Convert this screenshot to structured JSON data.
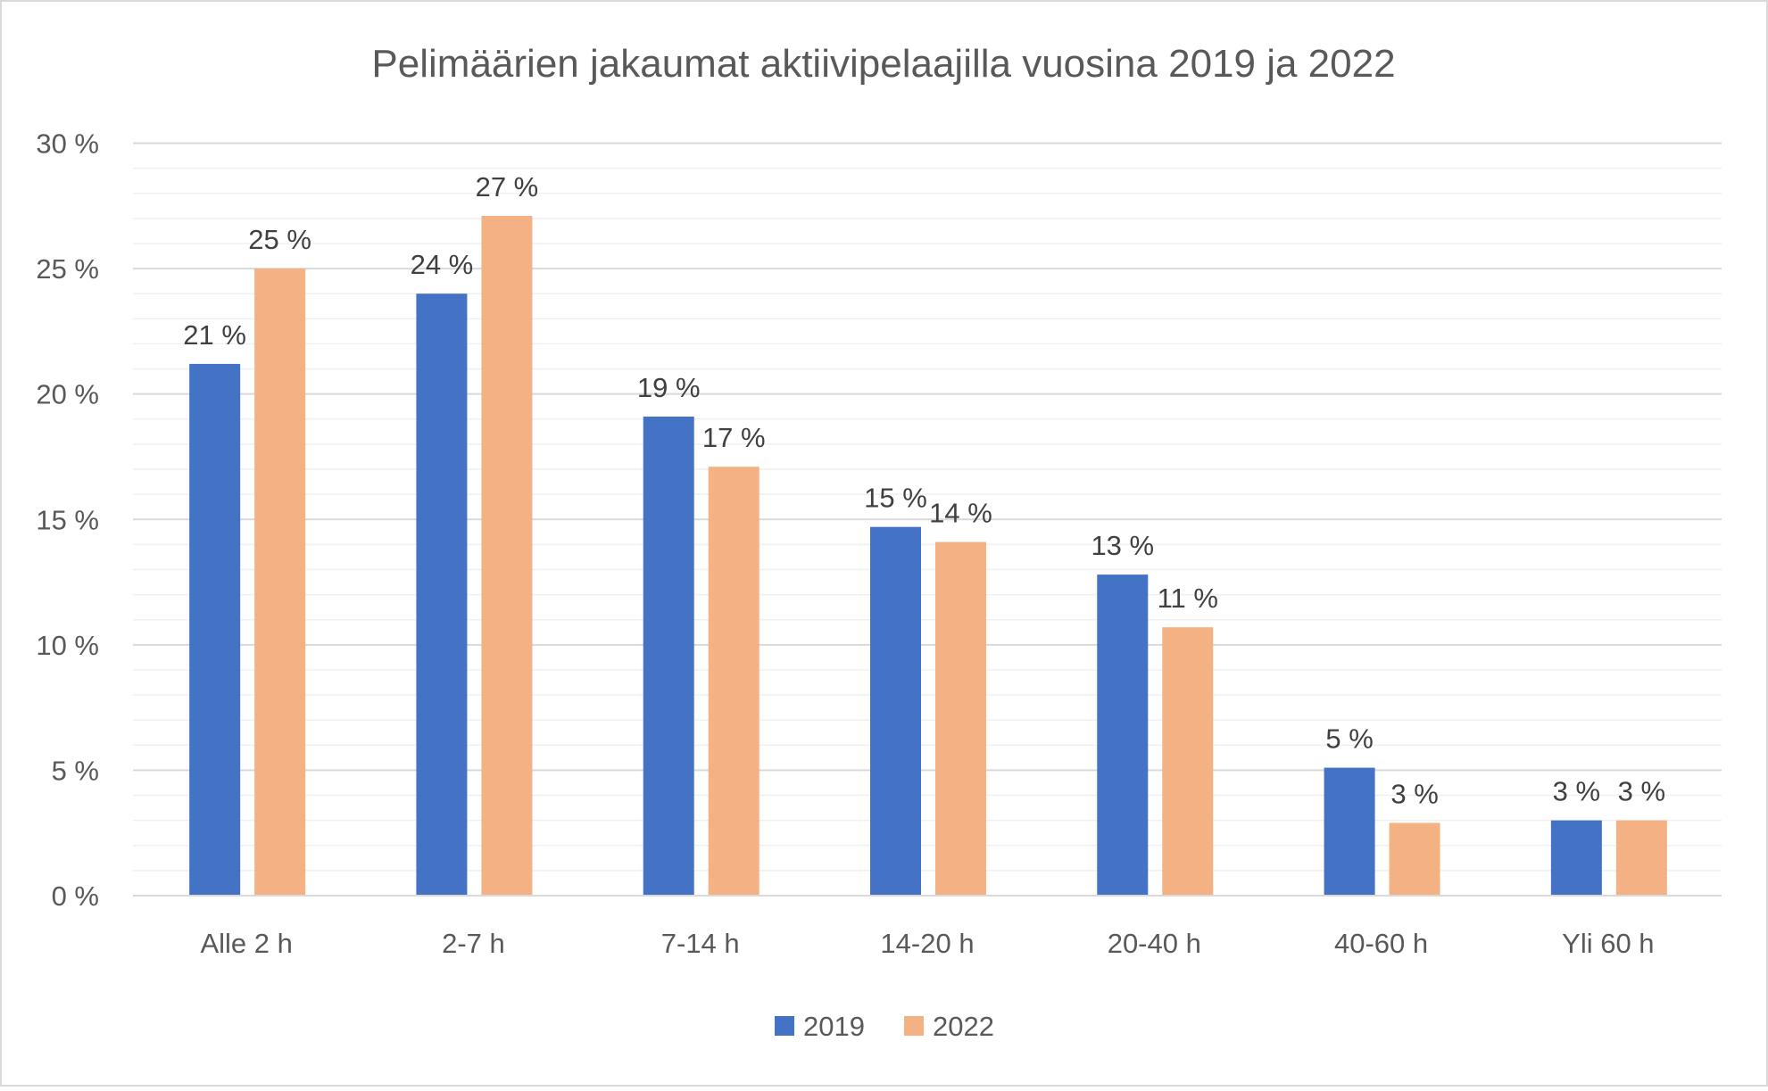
{
  "chart_data": {
    "type": "bar",
    "title": "Pelimäärien jakaumat aktiivipelaajilla vuosina 2019 ja 2022",
    "xlabel": "",
    "ylabel": "",
    "ylim": [
      0,
      30
    ],
    "yticks": [
      "0 %",
      "5 %",
      "10 %",
      "15 %",
      "20 %",
      "25 %",
      "30 %"
    ],
    "grid": true,
    "legend_position": "bottom",
    "categories": [
      "Alle 2 h",
      "2-7 h",
      "7-14 h",
      "14-20 h",
      "20-40 h",
      "40-60 h",
      "Yli 60 h"
    ],
    "series": [
      {
        "name": "2019",
        "color": "#4472C4",
        "values": [
          21.2,
          24.0,
          19.1,
          14.7,
          12.8,
          5.1,
          3.0
        ],
        "labels": [
          "21 %",
          "24 %",
          "19 %",
          "15 %",
          "13 %",
          "5 %",
          "3 %"
        ]
      },
      {
        "name": "2022",
        "color": "#F4B183",
        "values": [
          25.0,
          27.1,
          17.1,
          14.1,
          10.7,
          2.9,
          3.0
        ],
        "labels": [
          "25 %",
          "27 %",
          "17 %",
          "14 %",
          "11 %",
          "3 %",
          "3 %"
        ]
      }
    ]
  }
}
